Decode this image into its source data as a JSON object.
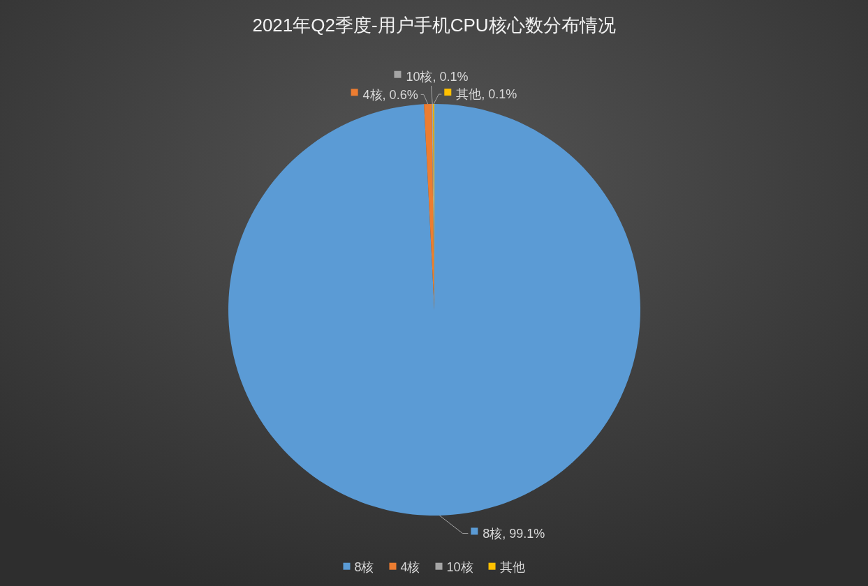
{
  "chart_data": {
    "type": "pie",
    "title": "2021年Q2季度-用户手机CPU核心数分布情况",
    "categories": [
      "8核",
      "4核",
      "10核",
      "其他"
    ],
    "values": [
      99.1,
      0.6,
      0.1,
      0.1
    ],
    "colors": [
      "#5b9bd5",
      "#ed7d31",
      "#a5a5a5",
      "#ffc000"
    ],
    "value_labels": [
      "8核, 99.1%",
      "4核, 0.6%",
      "10核, 0.1%",
      "其他, 0.1%"
    ],
    "legend": "bottom"
  }
}
